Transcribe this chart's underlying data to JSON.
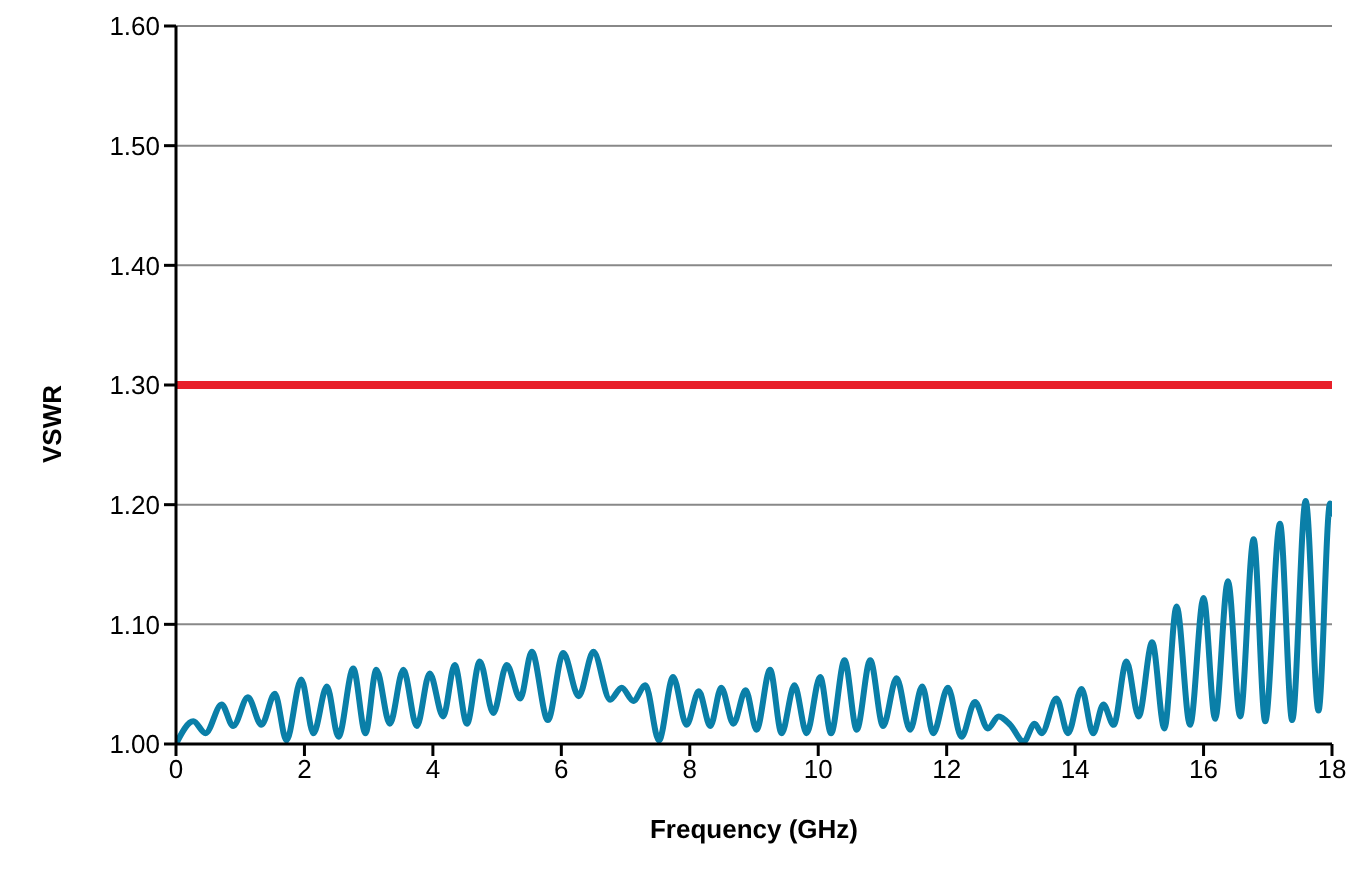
{
  "chart_data": {
    "type": "line",
    "xlabel": "Frequency (GHz)",
    "ylabel": "VSWR",
    "xlim": [
      0,
      18
    ],
    "xticks": [
      0,
      2,
      4,
      6,
      8,
      10,
      12,
      14,
      16,
      18
    ],
    "ylim": [
      1.0,
      1.6
    ],
    "yticks": [
      {
        "value": 1.0,
        "label": "1.00"
      },
      {
        "value": 1.1,
        "label": "1.10"
      },
      {
        "value": 1.2,
        "label": "1.20"
      },
      {
        "value": 1.3,
        "label": "1.30"
      },
      {
        "value": 1.4,
        "label": "1.40"
      },
      {
        "value": 1.5,
        "label": "1.50"
      },
      {
        "value": 1.6,
        "label": "1.60"
      }
    ],
    "grid": "y",
    "marker": "none",
    "line_style": "solid",
    "ref_lines": [
      {
        "axis": "y",
        "value": 1.3,
        "color": "#e8202a",
        "line_style": "solid"
      }
    ],
    "x": [
      0,
      0.27,
      0.46,
      0.71,
      0.89,
      1.12,
      1.33,
      1.54,
      1.72,
      1.95,
      2.14,
      2.35,
      2.53,
      2.76,
      2.95,
      3.12,
      3.33,
      3.54,
      3.75,
      3.95,
      4.16,
      4.34,
      4.53,
      4.73,
      4.94,
      5.15,
      5.36,
      5.54,
      5.79,
      6.03,
      6.27,
      6.5,
      6.76,
      6.94,
      7.12,
      7.31,
      7.52,
      7.74,
      7.95,
      8.14,
      8.32,
      8.49,
      8.68,
      8.87,
      9.04,
      9.25,
      9.43,
      9.63,
      9.82,
      10.03,
      10.2,
      10.41,
      10.6,
      10.81,
      11.01,
      11.22,
      11.43,
      11.62,
      11.79,
      12.02,
      12.23,
      12.44,
      12.64,
      12.81,
      12.99,
      13.2,
      13.37,
      13.48,
      13.71,
      13.89,
      14.1,
      14.28,
      14.44,
      14.6,
      14.8,
      14.99,
      15.2,
      15.39,
      15.58,
      15.79,
      16.0,
      16.18,
      16.38,
      16.57,
      16.78,
      16.96,
      17.19,
      17.38,
      17.59,
      17.79,
      17.97,
      18
    ],
    "series": [
      {
        "color": "#0a7fa8",
        "values": [
          1.0,
          1.019,
          1.009,
          1.033,
          1.015,
          1.039,
          1.016,
          1.042,
          1.003,
          1.054,
          1.009,
          1.048,
          1.006,
          1.063,
          1.009,
          1.062,
          1.017,
          1.062,
          1.015,
          1.059,
          1.023,
          1.066,
          1.017,
          1.069,
          1.026,
          1.066,
          1.038,
          1.077,
          1.02,
          1.076,
          1.04,
          1.077,
          1.037,
          1.047,
          1.036,
          1.049,
          1.003,
          1.056,
          1.016,
          1.044,
          1.015,
          1.047,
          1.017,
          1.045,
          1.012,
          1.062,
          1.009,
          1.049,
          1.009,
          1.056,
          1.009,
          1.07,
          1.012,
          1.07,
          1.015,
          1.055,
          1.012,
          1.048,
          1.009,
          1.047,
          1.006,
          1.035,
          1.013,
          1.023,
          1.016,
          1.002,
          1.017,
          1.009,
          1.038,
          1.009,
          1.046,
          1.009,
          1.033,
          1.016,
          1.069,
          1.023,
          1.085,
          1.013,
          1.115,
          1.016,
          1.122,
          1.021,
          1.136,
          1.023,
          1.171,
          1.019,
          1.184,
          1.02,
          1.203,
          1.028,
          1.201,
          1.19
        ]
      }
    ]
  }
}
